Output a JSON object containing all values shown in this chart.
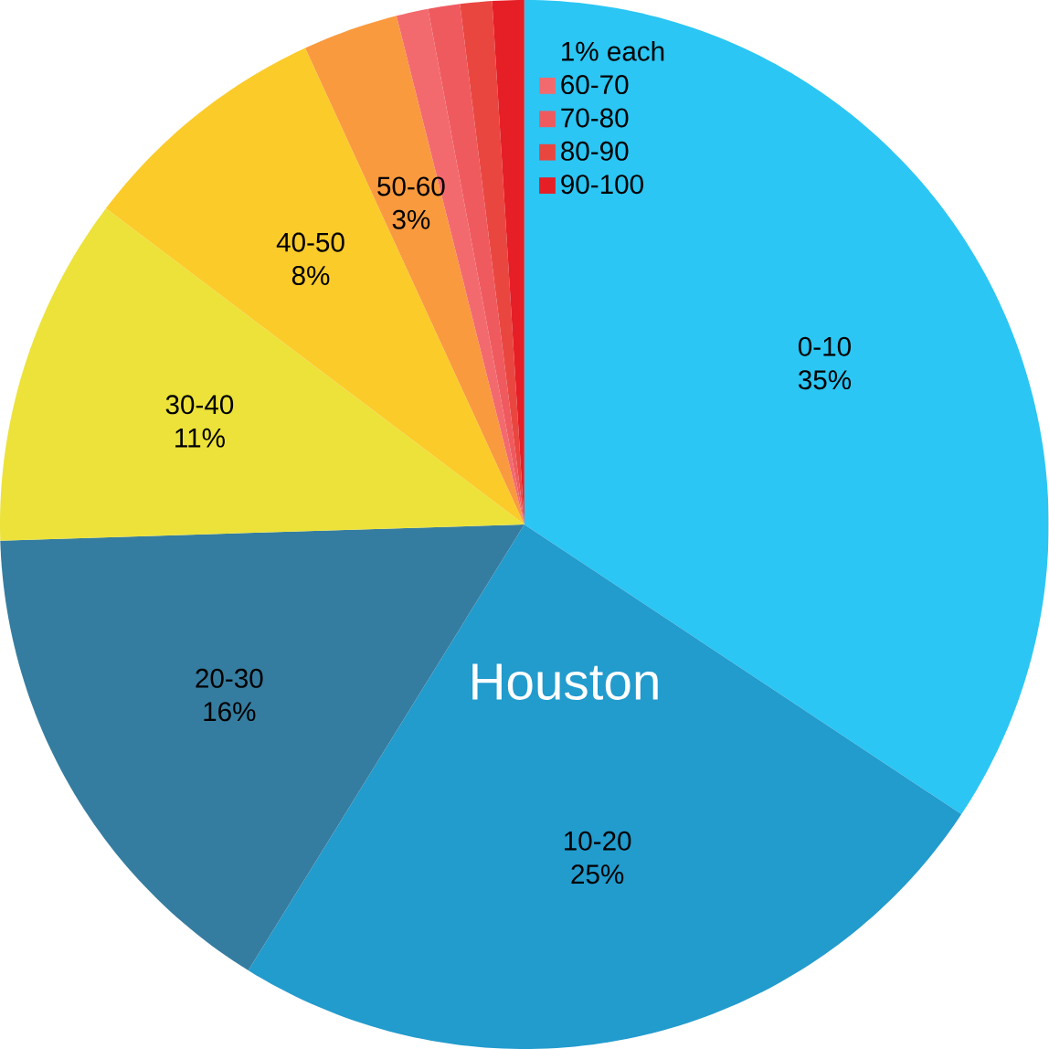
{
  "chart_data": {
    "type": "pie",
    "title": "Houston",
    "categories": [
      "0-10",
      "10-20",
      "20-30",
      "30-40",
      "40-50",
      "50-60",
      "60-70",
      "70-80",
      "80-90",
      "90-100"
    ],
    "values": [
      35,
      25,
      16,
      11,
      8,
      3,
      1,
      1,
      1,
      1
    ],
    "value_labels": [
      "35%",
      "25%",
      "16%",
      "11%",
      "8%",
      "3%",
      null,
      null,
      null,
      null
    ],
    "colors": [
      "#2bc6f4",
      "#229bcd",
      "#357da0",
      "#ece23a",
      "#fbcb2a",
      "#f99a3e",
      "#f36a6e",
      "#ef5a5f",
      "#ea4640",
      "#e61e26"
    ],
    "annotations": [
      "1% each"
    ],
    "legend": "top"
  }
}
